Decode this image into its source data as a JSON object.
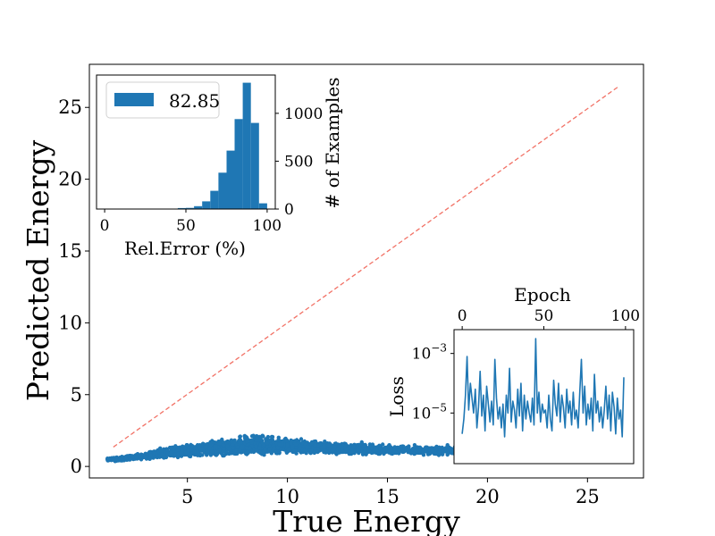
{
  "colors": {
    "scatter": "#1f77b4",
    "diagonal": "#f27266",
    "axes": "#000000",
    "hist": "#1f77b4",
    "loss": "#1f77b4"
  },
  "chart_data": [
    {
      "type": "scatter",
      "xlabel": "True Energy",
      "ylabel": "Predicted Energy",
      "xlim": [
        0.1,
        27.8
      ],
      "ylim": [
        -0.8,
        28.0
      ],
      "xticks": [
        5,
        10,
        15,
        20,
        25
      ],
      "yticks": [
        0,
        5,
        10,
        15,
        20,
        25
      ],
      "reference_line": {
        "style": "dashed",
        "from": [
          1.3,
          1.35
        ],
        "to": [
          26.6,
          26.5
        ]
      },
      "point_cloud": {
        "x_range": [
          1.0,
          22.0
        ],
        "trend": [
          [
            1.5,
            0.5
          ],
          [
            4,
            0.95
          ],
          [
            6,
            1.25
          ],
          [
            8,
            1.5
          ],
          [
            10,
            1.45
          ],
          [
            12,
            1.3
          ],
          [
            15,
            1.15
          ],
          [
            18,
            1.1
          ],
          [
            21,
            1.0
          ]
        ],
        "spread": [
          [
            1.5,
            0.15
          ],
          [
            5,
            0.45
          ],
          [
            8,
            0.75
          ],
          [
            12,
            0.45
          ],
          [
            18,
            0.35
          ],
          [
            21,
            0.3
          ]
        ]
      }
    },
    {
      "type": "bar",
      "subtype": "histogram",
      "xlabel": "Rel.Error (%)",
      "ylabel": "# of Examples",
      "legend": [
        "82.85"
      ],
      "legend_position": "top-left",
      "xlim": [
        -5,
        105
      ],
      "ylim": [
        0,
        1400
      ],
      "xticks": [
        0,
        50,
        100
      ],
      "yticks": [
        0,
        500,
        1000
      ],
      "bin_width": 5,
      "bins": [
        {
          "start": 45,
          "count": 10
        },
        {
          "start": 50,
          "count": 12
        },
        {
          "start": 55,
          "count": 30
        },
        {
          "start": 60,
          "count": 80
        },
        {
          "start": 65,
          "count": 190
        },
        {
          "start": 70,
          "count": 380
        },
        {
          "start": 75,
          "count": 610
        },
        {
          "start": 80,
          "count": 940
        },
        {
          "start": 85,
          "count": 1320
        },
        {
          "start": 90,
          "count": 900
        },
        {
          "start": 95,
          "count": 60
        }
      ]
    },
    {
      "type": "line",
      "xlabel": "Epoch",
      "ylabel": "Loss",
      "y_scale": "log",
      "xlim": [
        -5,
        105
      ],
      "ylim_log10": [
        -6.7,
        -2.2
      ],
      "xticks": [
        0,
        50,
        100
      ],
      "ytick_labels": [
        "10^{-3}",
        "10^{-5}"
      ],
      "ytick_exponents": [
        -3,
        -5
      ],
      "x": [
        0,
        1,
        2,
        3,
        4,
        5,
        6,
        7,
        8,
        9,
        10,
        11,
        12,
        13,
        14,
        15,
        16,
        17,
        18,
        19,
        20,
        21,
        22,
        23,
        24,
        25,
        26,
        27,
        28,
        29,
        30,
        31,
        32,
        33,
        34,
        35,
        36,
        37,
        38,
        39,
        40,
        41,
        42,
        43,
        44,
        45,
        46,
        47,
        48,
        49,
        50,
        51,
        52,
        53,
        54,
        55,
        56,
        57,
        58,
        59,
        60,
        61,
        62,
        63,
        64,
        65,
        66,
        67,
        68,
        69,
        70,
        71,
        72,
        73,
        74,
        75,
        76,
        77,
        78,
        79,
        80,
        81,
        82,
        83,
        84,
        85,
        86,
        87,
        88,
        89,
        90,
        91,
        92,
        93,
        94,
        95,
        96,
        97,
        98,
        99
      ],
      "values_log10": [
        -5.7,
        -5.2,
        -4.4,
        -3.1,
        -4.9,
        -4.0,
        -4.5,
        -5.0,
        -4.2,
        -5.5,
        -4.8,
        -3.6,
        -5.1,
        -4.4,
        -5.6,
        -4.1,
        -4.7,
        -5.3,
        -4.6,
        -5.4,
        -3.2,
        -4.5,
        -5.2,
        -4.8,
        -5.5,
        -4.7,
        -5.8,
        -4.4,
        -5.0,
        -3.5,
        -5.3,
        -4.6,
        -4.9,
        -5.5,
        -4.2,
        -5.1,
        -4.0,
        -5.6,
        -4.4,
        -5.2,
        -4.6,
        -5.0,
        -5.3,
        -4.5,
        -5.4,
        -2.5,
        -5.0,
        -4.3,
        -5.3,
        -4.7,
        -5.0,
        -4.9,
        -5.5,
        -4.4,
        -5.2,
        -5.6,
        -3.9,
        -4.7,
        -5.1,
        -4.0,
        -5.3,
        -4.4,
        -4.8,
        -5.5,
        -4.2,
        -5.0,
        -4.6,
        -5.4,
        -4.3,
        -5.2,
        -4.9,
        -5.5,
        -4.3,
        -3.2,
        -5.0,
        -4.1,
        -5.4,
        -4.7,
        -5.2,
        -4.5,
        -5.6,
        -3.7,
        -5.0,
        -4.6,
        -5.3,
        -4.8,
        -5.5,
        -4.9,
        -4.1,
        -5.2,
        -4.4,
        -5.6,
        -4.3,
        -4.8,
        -5.7,
        -4.5,
        -5.2,
        -4.9,
        -5.8,
        -3.8
      ]
    }
  ]
}
